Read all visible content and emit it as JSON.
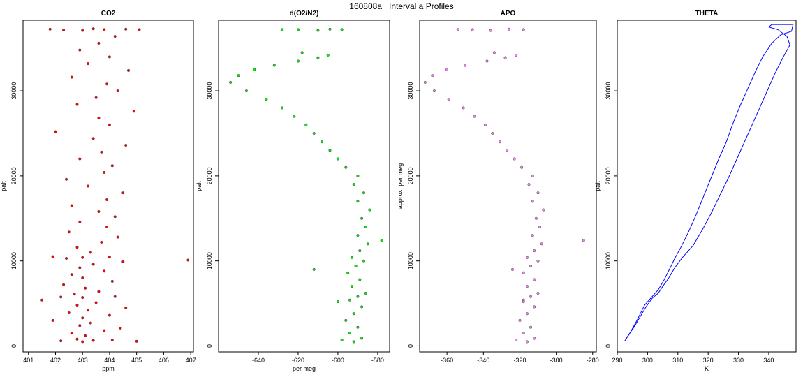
{
  "page": {
    "title": "160808a   Interval a Profiles"
  },
  "chart_data": [
    {
      "type": "scatter",
      "title": "CO2",
      "xlabel": "ppm",
      "ylabel": "palt",
      "xlim": [
        400.8,
        407.1
      ],
      "ylim": [
        -700,
        38300
      ],
      "xticks": [
        401,
        402,
        403,
        404,
        405,
        406,
        407
      ],
      "yticks": [
        0,
        10000,
        20000,
        30000
      ],
      "color": "#ff0000",
      "series": [
        {
          "values": [
            [
              403.0,
              500
            ],
            [
              402.2,
              600
            ],
            [
              403.4,
              650
            ],
            [
              404.1,
              700
            ],
            [
              405.0,
              550
            ],
            [
              402.8,
              800
            ],
            [
              403.1,
              1200
            ],
            [
              402.6,
              1500
            ],
            [
              403.8,
              1800
            ],
            [
              404.4,
              2100
            ],
            [
              402.9,
              2400
            ],
            [
              403.3,
              2700
            ],
            [
              401.9,
              3000
            ],
            [
              403.0,
              3300
            ],
            [
              404.0,
              3600
            ],
            [
              402.5,
              3900
            ],
            [
              403.2,
              4200
            ],
            [
              404.6,
              4500
            ],
            [
              402.8,
              4800
            ],
            [
              403.5,
              5100
            ],
            [
              401.5,
              5400
            ],
            [
              403.0,
              5700
            ],
            [
              402.2,
              5750
            ],
            [
              404.2,
              5800
            ],
            [
              402.7,
              6100
            ],
            [
              403.6,
              6400
            ],
            [
              403.1,
              6800
            ],
            [
              402.3,
              7200
            ],
            [
              404.1,
              7600
            ],
            [
              403.0,
              8000
            ],
            [
              402.6,
              8400
            ],
            [
              403.8,
              8800
            ],
            [
              402.9,
              9200
            ],
            [
              403.4,
              9600
            ],
            [
              404.5,
              9900
            ],
            [
              402.4,
              10300
            ],
            [
              403.0,
              10400
            ],
            [
              404.0,
              10450
            ],
            [
              401.9,
              10500
            ],
            [
              406.9,
              10100
            ],
            [
              403.3,
              11000
            ],
            [
              402.8,
              11600
            ],
            [
              403.7,
              12200
            ],
            [
              404.3,
              12800
            ],
            [
              402.5,
              13400
            ],
            [
              403.9,
              14000
            ],
            [
              402.9,
              14600
            ],
            [
              404.2,
              15200
            ],
            [
              403.6,
              15800
            ],
            [
              402.6,
              16500
            ],
            [
              403.9,
              17200
            ],
            [
              404.5,
              18000
            ],
            [
              403.2,
              18800
            ],
            [
              402.4,
              19600
            ],
            [
              403.8,
              20400
            ],
            [
              404.1,
              21200
            ],
            [
              402.9,
              22000
            ],
            [
              403.7,
              22800
            ],
            [
              404.6,
              23600
            ],
            [
              403.4,
              24400
            ],
            [
              402.0,
              25200
            ],
            [
              404.0,
              26000
            ],
            [
              403.6,
              26800
            ],
            [
              404.9,
              27600
            ],
            [
              402.8,
              28400
            ],
            [
              403.5,
              29200
            ],
            [
              404.3,
              30000
            ],
            [
              403.9,
              30800
            ],
            [
              402.6,
              31600
            ],
            [
              404.7,
              32400
            ],
            [
              403.2,
              33200
            ],
            [
              404.0,
              34000
            ],
            [
              402.9,
              34800
            ],
            [
              403.6,
              35600
            ],
            [
              404.2,
              36400
            ],
            [
              403.0,
              37100
            ],
            [
              402.3,
              37150
            ],
            [
              403.8,
              37200
            ],
            [
              404.6,
              37250
            ],
            [
              405.1,
              37200
            ],
            [
              401.8,
              37250
            ],
            [
              403.4,
              37300
            ]
          ]
        }
      ]
    },
    {
      "type": "scatter",
      "title": "d(O2/N2)",
      "xlabel": "per meg",
      "ylabel": "palt",
      "xlim": [
        -660,
        -574
      ],
      "ylim": [
        -700,
        38300
      ],
      "xticks": [
        -640,
        -620,
        -600,
        -580
      ],
      "yticks": [
        0,
        10000,
        20000,
        30000
      ],
      "color": "#00ee00",
      "series": [
        {
          "values": [
            [
              -592,
              500
            ],
            [
              -598,
              700
            ],
            [
              -588,
              900
            ],
            [
              -594,
              1500
            ],
            [
              -590,
              2200
            ],
            [
              -596,
              3000
            ],
            [
              -592,
              3800
            ],
            [
              -588,
              4600
            ],
            [
              -594,
              5400
            ],
            [
              -590,
              5800
            ],
            [
              -586,
              6200
            ],
            [
              -593,
              7000
            ],
            [
              -589,
              7800
            ],
            [
              -595,
              8600
            ],
            [
              -591,
              9400
            ],
            [
              -587,
              10000
            ],
            [
              -593,
              10400
            ],
            [
              -589,
              11200
            ],
            [
              -585,
              12000
            ],
            [
              -590,
              13000
            ],
            [
              -586,
              14000
            ],
            [
              -588,
              15000
            ],
            [
              -584,
              16000
            ],
            [
              -590,
              17000
            ],
            [
              -587,
              18000
            ],
            [
              -592,
              19000
            ],
            [
              -590,
              20000
            ],
            [
              -596,
              21000
            ],
            [
              -600,
              22000
            ],
            [
              -604,
              23000
            ],
            [
              -608,
              24000
            ],
            [
              -612,
              25000
            ],
            [
              -616,
              26000
            ],
            [
              -622,
              27000
            ],
            [
              -628,
              28000
            ],
            [
              -636,
              29000
            ],
            [
              -646,
              30000
            ],
            [
              -654,
              31000
            ],
            [
              -650,
              31800
            ],
            [
              -642,
              32500
            ],
            [
              -632,
              33000
            ],
            [
              -620,
              33500
            ],
            [
              -610,
              33900
            ],
            [
              -605,
              34200
            ],
            [
              -618,
              34500
            ],
            [
              -610,
              37100
            ],
            [
              -620,
              37200
            ],
            [
              -604,
              37250
            ],
            [
              -628,
              37200
            ],
            [
              -598,
              37200
            ],
            [
              -578,
              12400
            ],
            [
              -612,
              9000
            ],
            [
              -600,
              5200
            ]
          ]
        }
      ]
    },
    {
      "type": "scatter",
      "title": "APO",
      "xlabel": "",
      "ylabel": "approx. per meg",
      "xlim": [
        -375,
        -278
      ],
      "ylim": [
        -700,
        38300
      ],
      "xticks": [
        -360,
        -340,
        -320,
        -300,
        -280
      ],
      "yticks": [
        0,
        10000,
        20000,
        30000
      ],
      "color": "#ee82ee",
      "series": [
        {
          "values": [
            [
              -316,
              500
            ],
            [
              -322,
              700
            ],
            [
              -312,
              900
            ],
            [
              -318,
              1500
            ],
            [
              -314,
              2200
            ],
            [
              -320,
              3000
            ],
            [
              -316,
              3800
            ],
            [
              -312,
              4600
            ],
            [
              -318,
              5400
            ],
            [
              -314,
              5800
            ],
            [
              -310,
              6200
            ],
            [
              -316,
              7000
            ],
            [
              -312,
              7800
            ],
            [
              -318,
              8600
            ],
            [
              -314,
              9400
            ],
            [
              -310,
              10000
            ],
            [
              -316,
              10400
            ],
            [
              -312,
              11200
            ],
            [
              -308,
              12000
            ],
            [
              -313,
              13000
            ],
            [
              -309,
              14000
            ],
            [
              -311,
              15000
            ],
            [
              -307,
              16000
            ],
            [
              -313,
              17000
            ],
            [
              -310,
              18000
            ],
            [
              -315,
              19000
            ],
            [
              -313,
              20000
            ],
            [
              -319,
              21000
            ],
            [
              -323,
              22000
            ],
            [
              -327,
              23000
            ],
            [
              -331,
              24000
            ],
            [
              -335,
              25000
            ],
            [
              -339,
              26000
            ],
            [
              -345,
              27000
            ],
            [
              -351,
              28000
            ],
            [
              -359,
              29000
            ],
            [
              -367,
              30000
            ],
            [
              -372,
              31000
            ],
            [
              -368,
              31800
            ],
            [
              -360,
              32500
            ],
            [
              -350,
              33000
            ],
            [
              -338,
              33500
            ],
            [
              -328,
              33900
            ],
            [
              -322,
              34200
            ],
            [
              -334,
              34500
            ],
            [
              -336,
              37100
            ],
            [
              -346,
              37200
            ],
            [
              -326,
              37250
            ],
            [
              -354,
              37200
            ],
            [
              -318,
              37200
            ],
            [
              -285,
              12400
            ],
            [
              -324,
              9000
            ],
            [
              -318,
              5200
            ]
          ]
        }
      ]
    },
    {
      "type": "line",
      "title": "THETA",
      "xlabel": "K",
      "ylabel": "palt",
      "xlim": [
        290,
        349
      ],
      "ylim": [
        -700,
        38300
      ],
      "xticks": [
        290,
        300,
        310,
        320,
        330,
        340
      ],
      "yticks": [
        0,
        10000,
        20000,
        30000
      ],
      "color": "#0000ff",
      "series": [
        {
          "values": [
            [
              292.5,
              600
            ],
            [
              294.0,
              1400
            ],
            [
              296.5,
              3000
            ],
            [
              299.0,
              4800
            ],
            [
              301.0,
              5600
            ],
            [
              303.5,
              6600
            ],
            [
              305.5,
              7800
            ],
            [
              307.5,
              9200
            ],
            [
              309.0,
              10300
            ],
            [
              311.0,
              11600
            ],
            [
              313.5,
              13400
            ],
            [
              316.0,
              15400
            ],
            [
              318.5,
              17600
            ],
            [
              321.0,
              19800
            ],
            [
              323.5,
              22000
            ],
            [
              326.0,
              24000
            ],
            [
              328.0,
              26000
            ],
            [
              330.5,
              28200
            ],
            [
              333.0,
              30200
            ],
            [
              335.5,
              32200
            ],
            [
              338.0,
              34000
            ],
            [
              341.0,
              35600
            ],
            [
              344.0,
              36600
            ],
            [
              347.5,
              37000
            ],
            [
              348.0,
              37800
            ],
            [
              345.0,
              37800
            ],
            [
              341.0,
              37800
            ],
            [
              340.0,
              37500
            ],
            [
              343.0,
              37200
            ],
            [
              346.0,
              36400
            ],
            [
              347.0,
              35400
            ],
            [
              344.5,
              33800
            ],
            [
              342.0,
              32000
            ],
            [
              339.5,
              30000
            ],
            [
              337.0,
              28000
            ],
            [
              334.5,
              26000
            ],
            [
              332.0,
              24000
            ],
            [
              329.5,
              22000
            ],
            [
              327.0,
              20000
            ],
            [
              324.0,
              17800
            ],
            [
              321.0,
              15600
            ],
            [
              318.0,
              13600
            ],
            [
              315.0,
              11800
            ],
            [
              311.5,
              10400
            ],
            [
              309.0,
              9200
            ],
            [
              307.0,
              8000
            ],
            [
              305.0,
              7000
            ],
            [
              303.5,
              6200
            ],
            [
              301.5,
              5600
            ],
            [
              299.5,
              4600
            ],
            [
              297.5,
              3400
            ],
            [
              295.5,
              2200
            ],
            [
              293.5,
              1200
            ],
            [
              292.5,
              600
            ]
          ]
        }
      ]
    }
  ]
}
